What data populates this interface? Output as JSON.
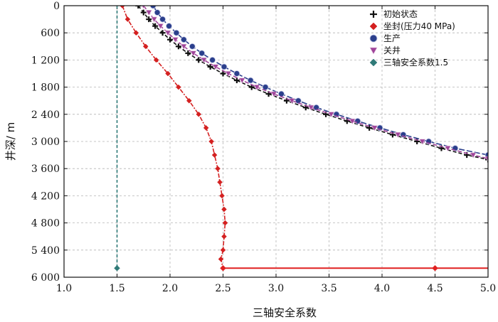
{
  "chart_data": {
    "type": "line",
    "xlabel": "三轴安全系数",
    "ylabel": "井深/ m",
    "xlim": [
      1.0,
      5.0
    ],
    "ylim": [
      0,
      6000
    ],
    "y_inverted": true,
    "grid": true,
    "legend_position": "top-right",
    "x_ticks": [
      "1.0",
      "1.5",
      "2.0",
      "2.5",
      "3.0",
      "3.5",
      "4.0",
      "4.5",
      "5.0"
    ],
    "y_ticks": [
      "0",
      "600",
      "1 200",
      "1 800",
      "2 400",
      "3 000",
      "3 600",
      "4 200",
      "4 800",
      "5 400",
      "6 000"
    ],
    "series": [
      {
        "name": "初始状态",
        "color": "#111111",
        "marker": "plus",
        "points": [
          [
            1.7,
            0
          ],
          [
            1.75,
            150
          ],
          [
            1.8,
            300
          ],
          [
            1.86,
            450
          ],
          [
            1.93,
            600
          ],
          [
            2.0,
            750
          ],
          [
            2.08,
            900
          ],
          [
            2.17,
            1050
          ],
          [
            2.27,
            1200
          ],
          [
            2.38,
            1350
          ],
          [
            2.5,
            1500
          ],
          [
            2.63,
            1650
          ],
          [
            2.77,
            1800
          ],
          [
            2.93,
            1950
          ],
          [
            3.1,
            2100
          ],
          [
            3.28,
            2250
          ],
          [
            3.47,
            2400
          ],
          [
            3.67,
            2550
          ],
          [
            3.88,
            2700
          ],
          [
            4.1,
            2850
          ],
          [
            4.33,
            3000
          ],
          [
            4.56,
            3150
          ],
          [
            4.8,
            3300
          ],
          [
            5.0,
            3400
          ]
        ]
      },
      {
        "name": "坐封(压力40 MPa)",
        "color": "#d42020",
        "marker": "diamond",
        "points": [
          [
            1.55,
            0
          ],
          [
            1.6,
            300
          ],
          [
            1.68,
            600
          ],
          [
            1.77,
            900
          ],
          [
            1.87,
            1200
          ],
          [
            1.98,
            1500
          ],
          [
            2.08,
            1800
          ],
          [
            2.18,
            2100
          ],
          [
            2.27,
            2400
          ],
          [
            2.34,
            2700
          ],
          [
            2.39,
            3000
          ],
          [
            2.42,
            3300
          ],
          [
            2.45,
            3600
          ],
          [
            2.47,
            3900
          ],
          [
            2.49,
            4200
          ],
          [
            2.51,
            4500
          ],
          [
            2.52,
            4800
          ],
          [
            2.51,
            5100
          ],
          [
            2.5,
            5400
          ],
          [
            2.48,
            5600
          ],
          [
            2.5,
            5800
          ]
        ]
      },
      {
        "name": "生产",
        "color": "#2b3f8c",
        "marker": "circle",
        "points": [
          [
            1.84,
            0
          ],
          [
            1.88,
            150
          ],
          [
            1.93,
            300
          ],
          [
            1.99,
            450
          ],
          [
            2.06,
            600
          ],
          [
            2.13,
            750
          ],
          [
            2.21,
            900
          ],
          [
            2.3,
            1050
          ],
          [
            2.4,
            1200
          ],
          [
            2.51,
            1350
          ],
          [
            2.63,
            1500
          ],
          [
            2.76,
            1650
          ],
          [
            2.9,
            1800
          ],
          [
            3.05,
            1950
          ],
          [
            3.21,
            2100
          ],
          [
            3.38,
            2250
          ],
          [
            3.57,
            2400
          ],
          [
            3.77,
            2550
          ],
          [
            3.98,
            2700
          ],
          [
            4.2,
            2850
          ],
          [
            4.44,
            3000
          ],
          [
            4.69,
            3150
          ],
          [
            5.0,
            3300
          ]
        ]
      },
      {
        "name": "关井",
        "color": "#a0459a",
        "marker": "triangle-down",
        "points": [
          [
            1.75,
            0
          ],
          [
            1.8,
            150
          ],
          [
            1.85,
            300
          ],
          [
            1.91,
            450
          ],
          [
            1.98,
            600
          ],
          [
            2.05,
            750
          ],
          [
            2.13,
            900
          ],
          [
            2.22,
            1050
          ],
          [
            2.32,
            1200
          ],
          [
            2.43,
            1350
          ],
          [
            2.55,
            1500
          ],
          [
            2.68,
            1650
          ],
          [
            2.82,
            1800
          ],
          [
            2.98,
            1950
          ],
          [
            3.15,
            2100
          ],
          [
            3.33,
            2250
          ],
          [
            3.52,
            2400
          ],
          [
            3.72,
            2550
          ],
          [
            3.93,
            2700
          ],
          [
            4.15,
            2850
          ],
          [
            4.38,
            3000
          ],
          [
            4.62,
            3150
          ],
          [
            4.86,
            3300
          ],
          [
            5.0,
            3380
          ]
        ]
      },
      {
        "name": "三轴安全系数1.5",
        "color": "#2f7a78",
        "marker": "diamond",
        "points": [
          [
            1.5,
            0
          ],
          [
            1.5,
            5800
          ]
        ]
      }
    ],
    "annotation_line": {
      "color": "#e02020",
      "points": [
        [
          2.5,
          5800
        ],
        [
          4.5,
          5800
        ],
        [
          5.0,
          5800
        ]
      ]
    }
  }
}
